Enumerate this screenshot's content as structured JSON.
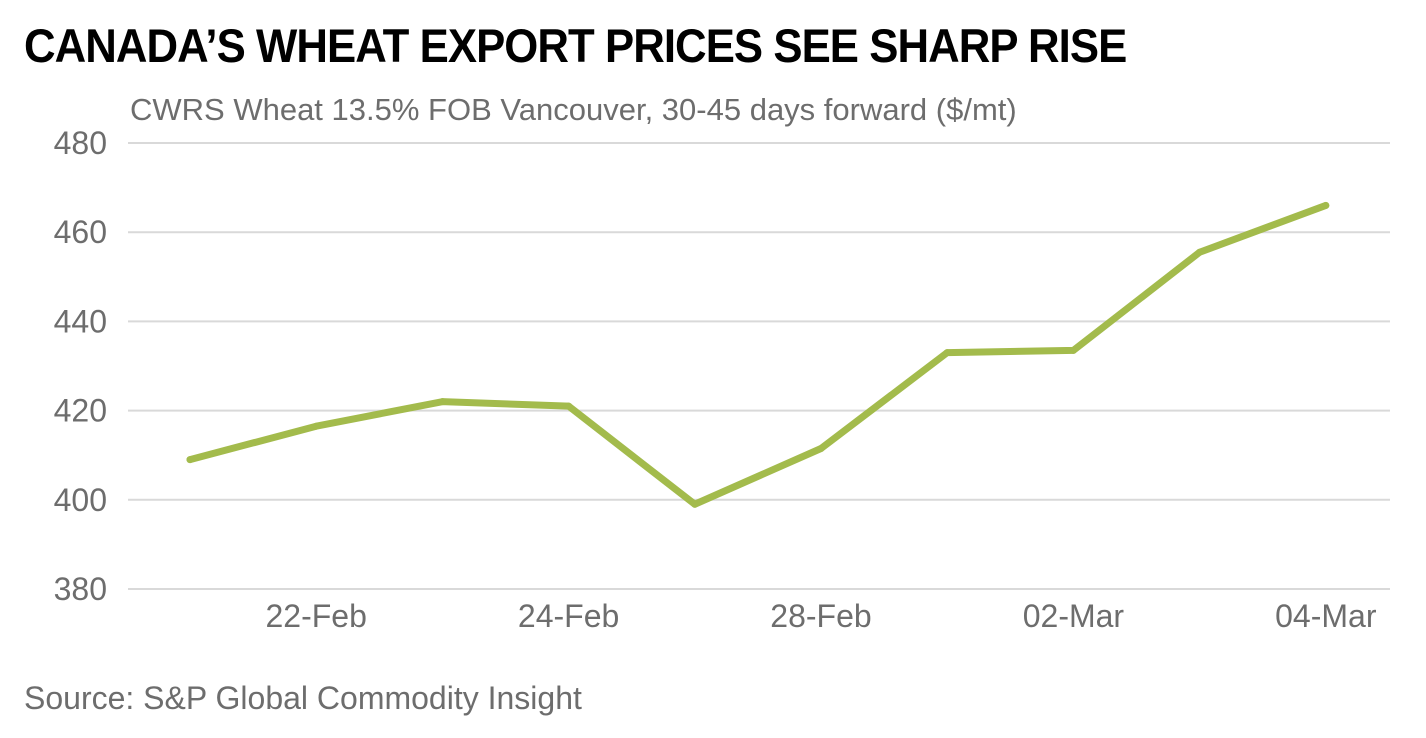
{
  "title": "CANADA’S WHEAT EXPORT PRICES SEE SHARP RISE",
  "subtitle": "CWRS Wheat 13.5% FOB Vancouver, 30-45 days forward ($/mt)",
  "source": "Source: S&P Global Commodity Insight",
  "colors": {
    "line": "#a3bb4c",
    "grid": "#d9d9d9",
    "text": "#6d6d6d"
  },
  "chart_data": {
    "type": "line",
    "title": "CANADA’S WHEAT EXPORT PRICES SEE SHARP RISE",
    "subtitle": "CWRS Wheat 13.5% FOB Vancouver, 30-45 days forward ($/mt)",
    "xlabel": "",
    "ylabel": "",
    "ylim": [
      380,
      480
    ],
    "yticks": [
      480,
      460,
      440,
      420,
      400,
      380
    ],
    "grid": true,
    "x_tick_labels": [
      "22-Feb",
      "24-Feb",
      "28-Feb",
      "02-Mar",
      "04-Mar"
    ],
    "series": [
      {
        "name": "CWRS Wheat 13.5% FOB Vancouver",
        "values": [
          409,
          416.5,
          422,
          421,
          399,
          411.5,
          433,
          433.5,
          455.5,
          466
        ]
      }
    ]
  }
}
